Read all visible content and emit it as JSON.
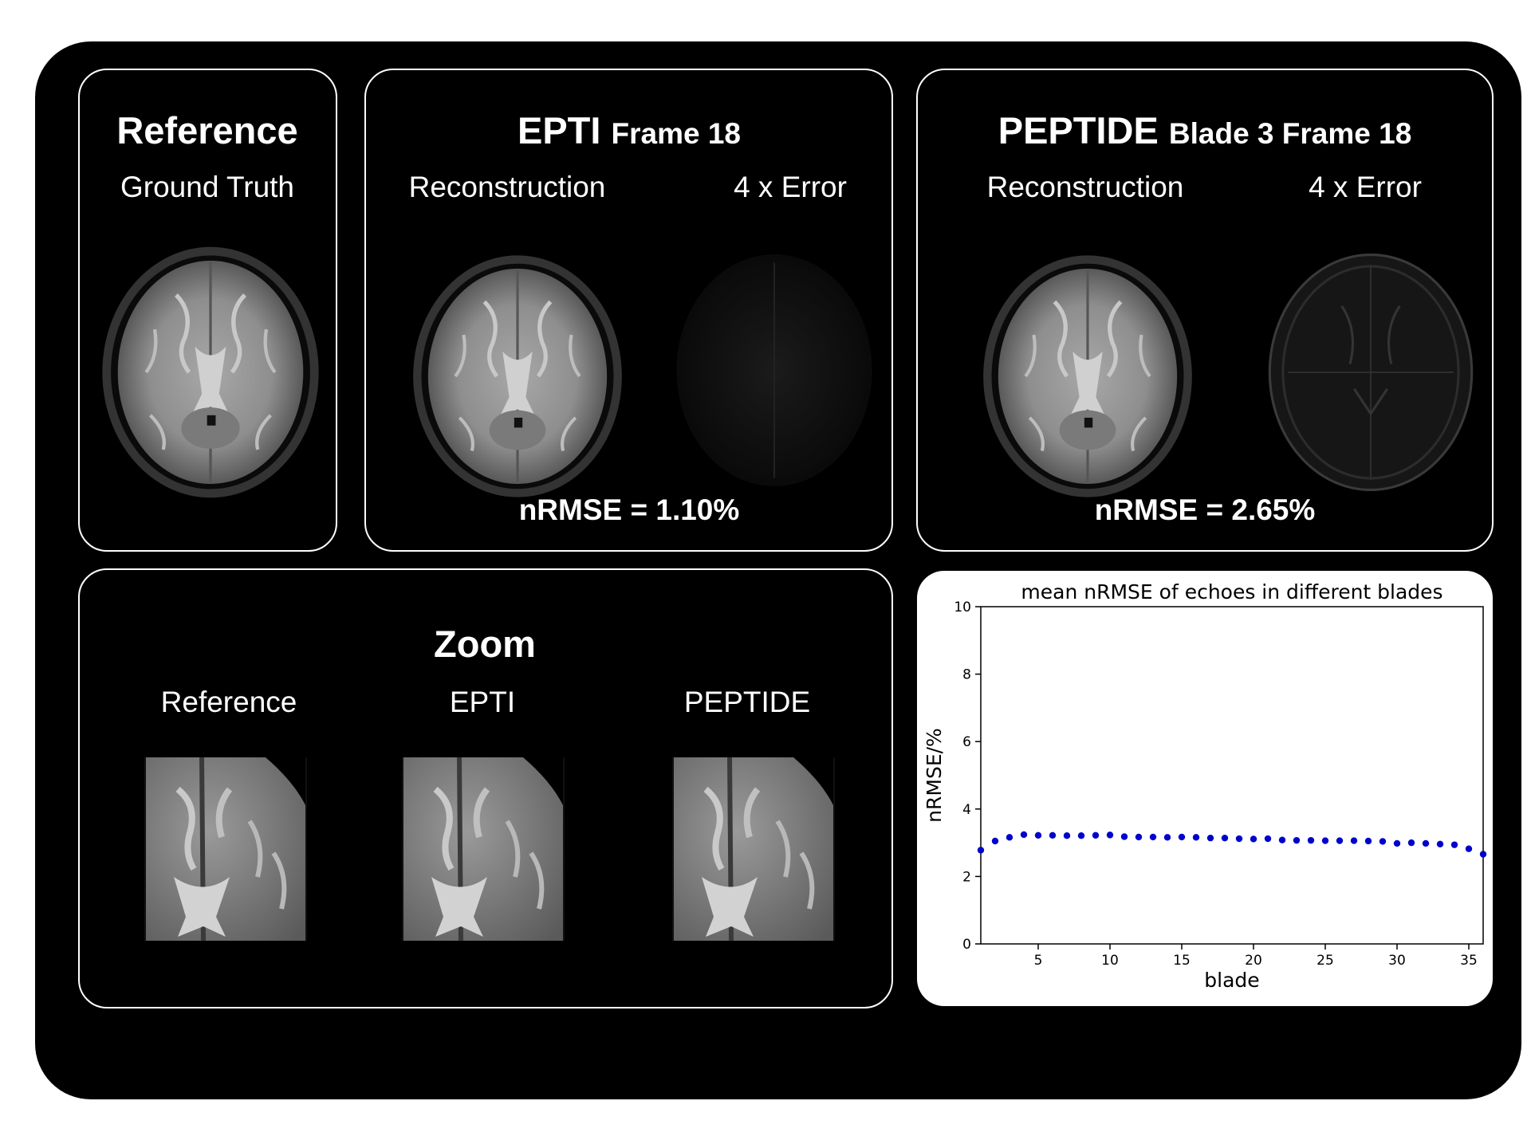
{
  "reference_panel": {
    "title": "Reference",
    "label": "Ground Truth"
  },
  "epti_panel": {
    "title": "EPTI",
    "title_suffix": "Frame 18",
    "recon_label": "Reconstruction",
    "error_label": "4 x Error",
    "nrmse": "nRMSE = 1.10%"
  },
  "peptide_panel": {
    "title": "PEPTIDE",
    "title_suffix": "Blade 3 Frame 18",
    "recon_label": "Reconstruction",
    "error_label": "4 x Error",
    "nrmse": "nRMSE = 2.65%"
  },
  "zoom_panel": {
    "title": "Zoom",
    "labels": [
      "Reference",
      "EPTI",
      "PEPTIDE"
    ]
  },
  "chart_data": {
    "type": "scatter",
    "title": "mean nRMSE of echoes in different blades",
    "xlabel": "blade",
    "ylabel": "nRMSE/%",
    "xlim": [
      1,
      36
    ],
    "ylim": [
      0,
      10
    ],
    "xticks": [
      5,
      10,
      15,
      20,
      25,
      30,
      35
    ],
    "yticks": [
      0,
      2,
      4,
      6,
      8,
      10
    ],
    "marker_color": "#0000cc",
    "series": [
      {
        "x": [
          1,
          2,
          3,
          4,
          5,
          6,
          7,
          8,
          9,
          10,
          11,
          12,
          13,
          14,
          15,
          16,
          17,
          18,
          19,
          20,
          21,
          22,
          23,
          24,
          25,
          26,
          27,
          28,
          29,
          30,
          31,
          32,
          33,
          34,
          35,
          36
        ],
        "y": [
          2.78,
          3.05,
          3.16,
          3.24,
          3.22,
          3.22,
          3.21,
          3.21,
          3.22,
          3.23,
          3.18,
          3.17,
          3.17,
          3.16,
          3.17,
          3.16,
          3.14,
          3.14,
          3.12,
          3.11,
          3.12,
          3.08,
          3.07,
          3.07,
          3.06,
          3.06,
          3.06,
          3.05,
          3.04,
          2.98,
          3.0,
          2.98,
          2.96,
          2.94,
          2.82,
          2.66
        ]
      }
    ]
  }
}
